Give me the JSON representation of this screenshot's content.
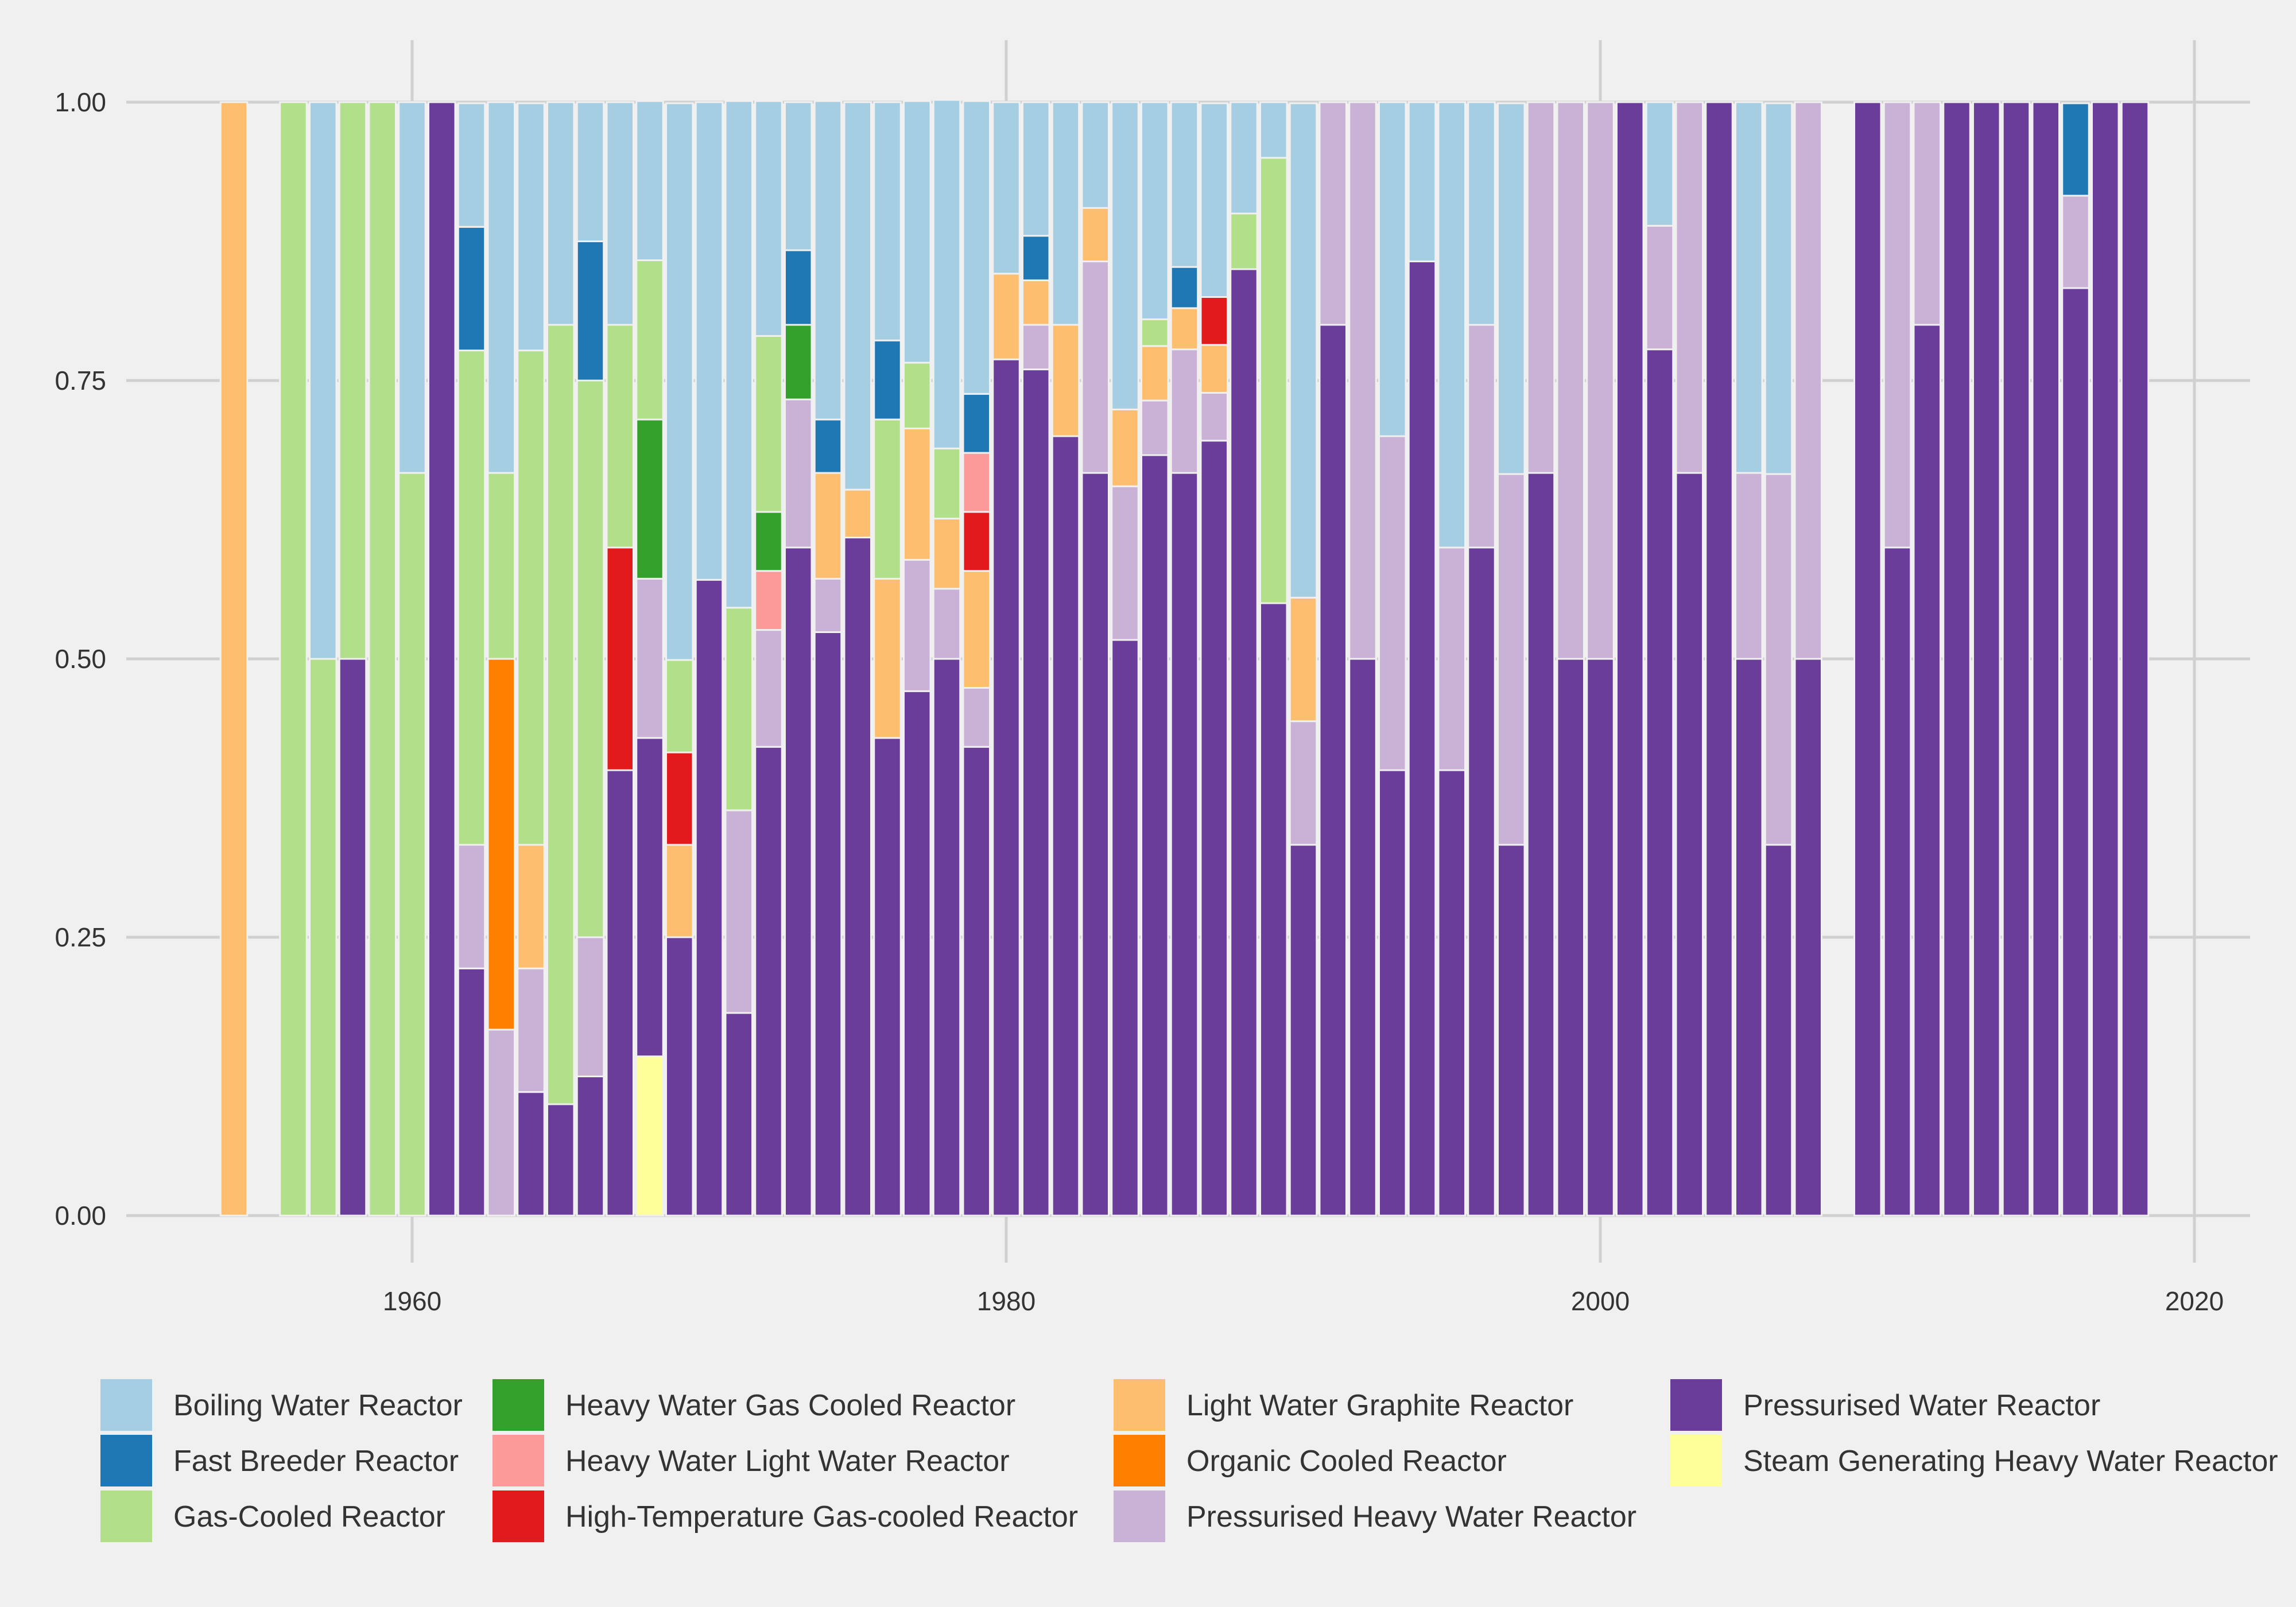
{
  "chart_data": {
    "type": "bar",
    "stacked": true,
    "title": "",
    "xlabel": "",
    "ylabel": "",
    "xlim": [
      1950,
      2021
    ],
    "ylim": [
      0,
      1.05
    ],
    "x_ticks": [
      1960,
      1980,
      2000,
      2020
    ],
    "y_ticks": [
      0,
      0.25,
      0.5,
      0.75,
      1.0
    ],
    "y_tick_labels": [
      "0.00",
      "0.25",
      "0.50",
      "0.75",
      "1.00"
    ],
    "grid": true,
    "legend_position": "bottom",
    "series": [
      {
        "name": "Boiling Water Reactor",
        "color": "#a6cee3"
      },
      {
        "name": "Fast Breeder Reactor",
        "color": "#1f78b4"
      },
      {
        "name": "Gas-Cooled Reactor",
        "color": "#b2df8a"
      },
      {
        "name": "Heavy Water Gas Cooled Reactor",
        "color": "#33a02c"
      },
      {
        "name": "Heavy Water Light Water Reactor",
        "color": "#fb9a99"
      },
      {
        "name": "High-Temperature Gas-cooled Reactor",
        "color": "#e31a1c"
      },
      {
        "name": "Light Water Graphite Reactor",
        "color": "#fdbf6f"
      },
      {
        "name": "Organic Cooled Reactor",
        "color": "#ff7f00"
      },
      {
        "name": "Pressurised Heavy Water Reactor",
        "color": "#cab2d6"
      },
      {
        "name": "Pressurised Water Reactor",
        "color": "#6a3d9a"
      },
      {
        "name": "Steam Generating Heavy Water Reactor",
        "color": "#ffff99"
      }
    ],
    "stack_order_top_to_bottom": [
      "Boiling Water Reactor",
      "Fast Breeder Reactor",
      "Gas-Cooled Reactor",
      "Heavy Water Gas Cooled Reactor",
      "Heavy Water Light Water Reactor",
      "High-Temperature Gas-cooled Reactor",
      "Light Water Graphite Reactor",
      "Organic Cooled Reactor",
      "Pressurised Heavy Water Reactor",
      "Pressurised Water Reactor",
      "Steam Generating Heavy Water Reactor"
    ],
    "bars": [
      {
        "year": 1954,
        "shares": {
          "Light Water Graphite Reactor": 1.0
        }
      },
      {
        "year": 1956,
        "shares": {
          "Gas-Cooled Reactor": 1.0
        }
      },
      {
        "year": 1957,
        "shares": {
          "Boiling Water Reactor": 0.5,
          "Gas-Cooled Reactor": 0.5
        }
      },
      {
        "year": 1958,
        "shares": {
          "Gas-Cooled Reactor": 0.5,
          "Pressurised Water Reactor": 0.5
        }
      },
      {
        "year": 1959,
        "shares": {
          "Gas-Cooled Reactor": 1.0
        }
      },
      {
        "year": 1960,
        "shares": {
          "Boiling Water Reactor": 0.333,
          "Gas-Cooled Reactor": 0.667
        }
      },
      {
        "year": 1961,
        "shares": {
          "Pressurised Water Reactor": 1.0
        }
      },
      {
        "year": 1962,
        "shares": {
          "Boiling Water Reactor": 0.111,
          "Fast Breeder Reactor": 0.111,
          "Gas-Cooled Reactor": 0.444,
          "Pressurised Heavy Water Reactor": 0.111,
          "Pressurised Water Reactor": 0.222
        }
      },
      {
        "year": 1963,
        "shares": {
          "Boiling Water Reactor": 0.333,
          "Gas-Cooled Reactor": 0.167,
          "Organic Cooled Reactor": 0.333,
          "Pressurised Heavy Water Reactor": 0.167
        }
      },
      {
        "year": 1964,
        "shares": {
          "Boiling Water Reactor": 0.222,
          "Gas-Cooled Reactor": 0.444,
          "Light Water Graphite Reactor": 0.111,
          "Pressurised Heavy Water Reactor": 0.111,
          "Pressurised Water Reactor": 0.111
        }
      },
      {
        "year": 1965,
        "shares": {
          "Boiling Water Reactor": 0.2,
          "Gas-Cooled Reactor": 0.7,
          "Pressurised Water Reactor": 0.1
        }
      },
      {
        "year": 1966,
        "shares": {
          "Boiling Water Reactor": 0.125,
          "Fast Breeder Reactor": 0.125,
          "Gas-Cooled Reactor": 0.5,
          "Pressurised Heavy Water Reactor": 0.125,
          "Pressurised Water Reactor": 0.125
        }
      },
      {
        "year": 1967,
        "shares": {
          "Boiling Water Reactor": 0.2,
          "Gas-Cooled Reactor": 0.2,
          "High-Temperature Gas-cooled Reactor": 0.2,
          "Pressurised Water Reactor": 0.4
        }
      },
      {
        "year": 1968,
        "shares": {
          "Boiling Water Reactor": 0.143,
          "Gas-Cooled Reactor": 0.143,
          "Heavy Water Gas Cooled Reactor": 0.143,
          "Pressurised Heavy Water Reactor": 0.143,
          "Pressurised Water Reactor": 0.286,
          "Steam Generating Heavy Water Reactor": 0.143
        }
      },
      {
        "year": 1969,
        "shares": {
          "Boiling Water Reactor": 0.5,
          "Gas-Cooled Reactor": 0.083,
          "High-Temperature Gas-cooled Reactor": 0.083,
          "Light Water Graphite Reactor": 0.083,
          "Pressurised Water Reactor": 0.25
        }
      },
      {
        "year": 1970,
        "shares": {
          "Boiling Water Reactor": 0.429,
          "Pressurised Water Reactor": 0.571
        }
      },
      {
        "year": 1971,
        "shares": {
          "Boiling Water Reactor": 0.455,
          "Gas-Cooled Reactor": 0.182,
          "Pressurised Heavy Water Reactor": 0.182,
          "Pressurised Water Reactor": 0.182
        }
      },
      {
        "year": 1972,
        "shares": {
          "Boiling Water Reactor": 0.211,
          "Gas-Cooled Reactor": 0.158,
          "Heavy Water Gas Cooled Reactor": 0.053,
          "Heavy Water Light Water Reactor": 0.053,
          "Pressurised Heavy Water Reactor": 0.105,
          "Pressurised Water Reactor": 0.421
        }
      },
      {
        "year": 1973,
        "shares": {
          "Boiling Water Reactor": 0.133,
          "Fast Breeder Reactor": 0.067,
          "Heavy Water Gas Cooled Reactor": 0.067,
          "Pressurised Heavy Water Reactor": 0.133,
          "Pressurised Water Reactor": 0.6
        }
      },
      {
        "year": 1974,
        "shares": {
          "Boiling Water Reactor": 0.286,
          "Fast Breeder Reactor": 0.048,
          "Light Water Graphite Reactor": 0.095,
          "Pressurised Heavy Water Reactor": 0.048,
          "Pressurised Water Reactor": 0.524
        }
      },
      {
        "year": 1975,
        "shares": {
          "Boiling Water Reactor": 0.348,
          "Light Water Graphite Reactor": 0.043,
          "Pressurised Water Reactor": 0.609
        }
      },
      {
        "year": 1976,
        "shares": {
          "Boiling Water Reactor": 0.214,
          "Fast Breeder Reactor": 0.071,
          "Gas-Cooled Reactor": 0.143,
          "Light Water Graphite Reactor": 0.143,
          "Pressurised Water Reactor": 0.429
        }
      },
      {
        "year": 1977,
        "shares": {
          "Boiling Water Reactor": 0.235,
          "Gas-Cooled Reactor": 0.059,
          "Light Water Graphite Reactor": 0.118,
          "Pressurised Heavy Water Reactor": 0.118,
          "Pressurised Water Reactor": 0.471
        }
      },
      {
        "year": 1978,
        "shares": {
          "Boiling Water Reactor": 0.313,
          "Gas-Cooled Reactor": 0.063,
          "Light Water Graphite Reactor": 0.063,
          "Pressurised Heavy Water Reactor": 0.063,
          "Pressurised Water Reactor": 0.5
        }
      },
      {
        "year": 1979,
        "shares": {
          "Boiling Water Reactor": 0.263,
          "Fast Breeder Reactor": 0.053,
          "Heavy Water Light Water Reactor": 0.053,
          "High-Temperature Gas-cooled Reactor": 0.053,
          "Light Water Graphite Reactor": 0.105,
          "Pressurised Heavy Water Reactor": 0.053,
          "Pressurised Water Reactor": 0.421
        }
      },
      {
        "year": 1980,
        "shares": {
          "Boiling Water Reactor": 0.154,
          "Light Water Graphite Reactor": 0.077,
          "Pressurised Water Reactor": 0.769
        }
      },
      {
        "year": 1981,
        "shares": {
          "Boiling Water Reactor": 0.12,
          "Fast Breeder Reactor": 0.04,
          "Light Water Graphite Reactor": 0.04,
          "Pressurised Heavy Water Reactor": 0.04,
          "Pressurised Water Reactor": 0.76
        }
      },
      {
        "year": 1982,
        "shares": {
          "Boiling Water Reactor": 0.2,
          "Light Water Graphite Reactor": 0.1,
          "Pressurised Water Reactor": 0.7
        }
      },
      {
        "year": 1983,
        "shares": {
          "Boiling Water Reactor": 0.095,
          "Light Water Graphite Reactor": 0.048,
          "Pressurised Heavy Water Reactor": 0.19,
          "Pressurised Water Reactor": 0.667
        }
      },
      {
        "year": 1984,
        "shares": {
          "Boiling Water Reactor": 0.276,
          "Light Water Graphite Reactor": 0.069,
          "Pressurised Heavy Water Reactor": 0.138,
          "Pressurised Water Reactor": 0.517
        }
      },
      {
        "year": 1985,
        "shares": {
          "Boiling Water Reactor": 0.195,
          "Gas-Cooled Reactor": 0.024,
          "Light Water Graphite Reactor": 0.049,
          "Pressurised Heavy Water Reactor": 0.049,
          "Pressurised Water Reactor": 0.683
        }
      },
      {
        "year": 1986,
        "shares": {
          "Boiling Water Reactor": 0.148,
          "Fast Breeder Reactor": 0.037,
          "Light Water Graphite Reactor": 0.037,
          "Pressurised Heavy Water Reactor": 0.111,
          "Pressurised Water Reactor": 0.667
        }
      },
      {
        "year": 1987,
        "shares": {
          "Boiling Water Reactor": 0.174,
          "High-Temperature Gas-cooled Reactor": 0.043,
          "Light Water Graphite Reactor": 0.043,
          "Pressurised Heavy Water Reactor": 0.043,
          "Pressurised Water Reactor": 0.696
        }
      },
      {
        "year": 1988,
        "shares": {
          "Boiling Water Reactor": 0.1,
          "Gas-Cooled Reactor": 0.05,
          "Pressurised Water Reactor": 0.85
        }
      },
      {
        "year": 1989,
        "shares": {
          "Boiling Water Reactor": 0.05,
          "Gas-Cooled Reactor": 0.4,
          "Pressurised Water Reactor": 0.55
        }
      },
      {
        "year": 1990,
        "shares": {
          "Boiling Water Reactor": 0.444,
          "Light Water Graphite Reactor": 0.111,
          "Pressurised Heavy Water Reactor": 0.111,
          "Pressurised Water Reactor": 0.333
        }
      },
      {
        "year": 1991,
        "shares": {
          "Pressurised Heavy Water Reactor": 0.2,
          "Pressurised Water Reactor": 0.8
        }
      },
      {
        "year": 1992,
        "shares": {
          "Pressurised Heavy Water Reactor": 0.5,
          "Pressurised Water Reactor": 0.5
        }
      },
      {
        "year": 1993,
        "shares": {
          "Boiling Water Reactor": 0.3,
          "Pressurised Heavy Water Reactor": 0.3,
          "Pressurised Water Reactor": 0.4
        }
      },
      {
        "year": 1994,
        "shares": {
          "Boiling Water Reactor": 0.143,
          "Pressurised Water Reactor": 0.857
        }
      },
      {
        "year": 1995,
        "shares": {
          "Boiling Water Reactor": 0.4,
          "Pressurised Heavy Water Reactor": 0.2,
          "Pressurised Water Reactor": 0.4
        }
      },
      {
        "year": 1996,
        "shares": {
          "Boiling Water Reactor": 0.2,
          "Pressurised Heavy Water Reactor": 0.2,
          "Pressurised Water Reactor": 0.6
        }
      },
      {
        "year": 1997,
        "shares": {
          "Boiling Water Reactor": 0.333,
          "Pressurised Heavy Water Reactor": 0.333,
          "Pressurised Water Reactor": 0.333
        }
      },
      {
        "year": 1998,
        "shares": {
          "Pressurised Heavy Water Reactor": 0.333,
          "Pressurised Water Reactor": 0.667
        }
      },
      {
        "year": 1999,
        "shares": {
          "Pressurised Heavy Water Reactor": 0.5,
          "Pressurised Water Reactor": 0.5
        }
      },
      {
        "year": 2000,
        "shares": {
          "Pressurised Heavy Water Reactor": 0.5,
          "Pressurised Water Reactor": 0.5
        }
      },
      {
        "year": 2001,
        "shares": {
          "Pressurised Water Reactor": 1.0
        }
      },
      {
        "year": 2002,
        "shares": {
          "Boiling Water Reactor": 0.111,
          "Pressurised Heavy Water Reactor": 0.111,
          "Pressurised Water Reactor": 0.778
        }
      },
      {
        "year": 2003,
        "shares": {
          "Pressurised Heavy Water Reactor": 0.333,
          "Pressurised Water Reactor": 0.667
        }
      },
      {
        "year": 2004,
        "shares": {
          "Pressurised Water Reactor": 1.0
        }
      },
      {
        "year": 2005,
        "shares": {
          "Boiling Water Reactor": 0.333,
          "Pressurised Heavy Water Reactor": 0.167,
          "Pressurised Water Reactor": 0.5
        }
      },
      {
        "year": 2006,
        "shares": {
          "Boiling Water Reactor": 0.333,
          "Pressurised Heavy Water Reactor": 0.333,
          "Pressurised Water Reactor": 0.333
        }
      },
      {
        "year": 2007,
        "shares": {
          "Pressurised Heavy Water Reactor": 0.5,
          "Pressurised Water Reactor": 0.5
        }
      },
      {
        "year": 2009,
        "shares": {
          "Pressurised Water Reactor": 1.0
        }
      },
      {
        "year": 2010,
        "shares": {
          "Pressurised Heavy Water Reactor": 0.4,
          "Pressurised Water Reactor": 0.6
        }
      },
      {
        "year": 2011,
        "shares": {
          "Pressurised Heavy Water Reactor": 0.2,
          "Pressurised Water Reactor": 0.8
        }
      },
      {
        "year": 2012,
        "shares": {
          "Pressurised Water Reactor": 1.0
        }
      },
      {
        "year": 2013,
        "shares": {
          "Pressurised Water Reactor": 1.0
        }
      },
      {
        "year": 2014,
        "shares": {
          "Pressurised Water Reactor": 1.0
        }
      },
      {
        "year": 2015,
        "shares": {
          "Pressurised Water Reactor": 1.0
        }
      },
      {
        "year": 2016,
        "shares": {
          "Fast Breeder Reactor": 0.083,
          "Pressurised Heavy Water Reactor": 0.083,
          "Pressurised Water Reactor": 0.833
        }
      },
      {
        "year": 2017,
        "shares": {
          "Pressurised Water Reactor": 1.0
        }
      },
      {
        "year": 2018,
        "shares": {
          "Pressurised Water Reactor": 1.0
        }
      }
    ]
  }
}
